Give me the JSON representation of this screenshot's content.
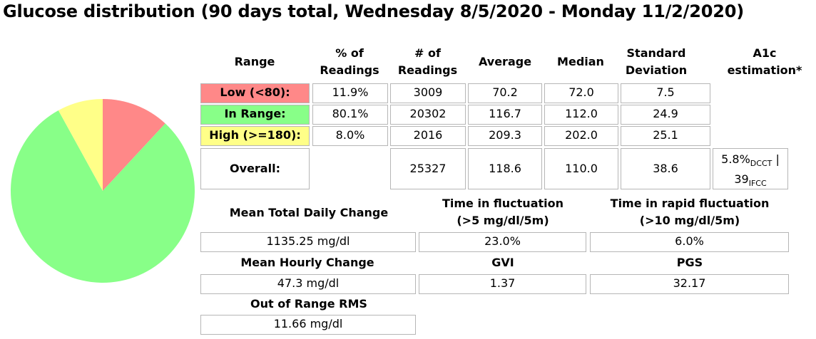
{
  "title": "Glucose distribution (90 days total, Wednesday 8/5/2020 - Monday 11/2/2020)",
  "chart_data": {
    "type": "pie",
    "categories": [
      "Low (<80)",
      "In Range",
      "High (>=180)"
    ],
    "values": [
      11.9,
      80.1,
      8.0
    ],
    "colors": [
      "#ff8888",
      "#88ff88",
      "#ffff88"
    ]
  },
  "table": {
    "headers": {
      "range": "Range",
      "pct_line1": "% of",
      "pct_line2": "Readings",
      "num_line1": "# of",
      "num_line2": "Readings",
      "average": "Average",
      "median": "Median",
      "sd_line1": "Standard",
      "sd_line2": "Deviation",
      "a1c_line1": "A1c",
      "a1c_line2": "estimation*"
    },
    "rows": [
      {
        "label": "Low   (<80):",
        "pct": "11.9%",
        "num": "3009",
        "avg": "70.2",
        "median": "72.0",
        "sd": "7.5",
        "color": "#ff8888"
      },
      {
        "label": "In Range:",
        "pct": "80.1%",
        "num": "20302",
        "avg": "116.7",
        "median": "112.0",
        "sd": "24.9",
        "color": "#88ff88"
      },
      {
        "label": "High (>=180):",
        "pct": "8.0%",
        "num": "2016",
        "avg": "209.3",
        "median": "202.0",
        "sd": "25.1",
        "color": "#ffff88"
      }
    ],
    "overall": {
      "label": "Overall:",
      "num": "25327",
      "avg": "118.6",
      "median": "110.0",
      "sd": "38.6",
      "a1c_pct": "5.8%",
      "a1c_pct_sub": "DCCT",
      "a1c_sep": " | ",
      "a1c_ifcc": "39",
      "a1c_ifcc_sub": "IFCC"
    }
  },
  "stats": {
    "mean_total_daily_change_label": "Mean Total Daily Change",
    "mean_total_daily_change_value": "1135.25 mg/dl",
    "time_fluct_label_line1": "Time in fluctuation",
    "time_fluct_label_line2": "(>5 mg/dl/5m)",
    "time_fluct_value": "23.0%",
    "time_rapid_fluct_label_line1": "Time in rapid fluctuation",
    "time_rapid_fluct_label_line2": "(>10 mg/dl/5m)",
    "time_rapid_fluct_value": "6.0%",
    "mean_hourly_change_label": "Mean Hourly Change",
    "mean_hourly_change_value": "47.3 mg/dl",
    "gvi_label": "GVI",
    "gvi_value": "1.37",
    "pgs_label": "PGS",
    "pgs_value": "32.17",
    "out_of_range_rms_label": "Out of Range RMS",
    "out_of_range_rms_value": "11.66 mg/dl"
  }
}
